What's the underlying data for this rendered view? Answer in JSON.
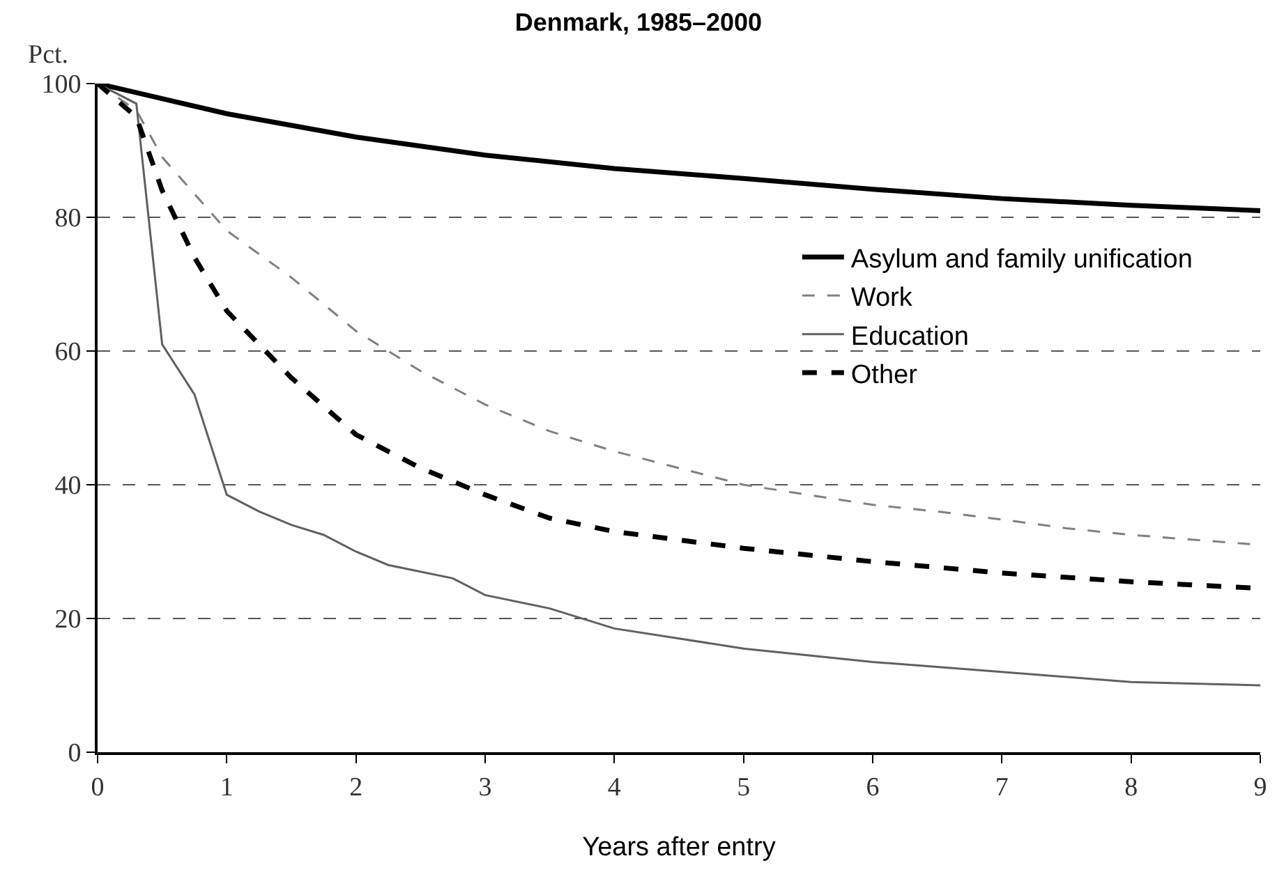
{
  "chart_data": {
    "type": "line",
    "title": "Denmark, 1985–2000",
    "xlabel": "Years after entry",
    "ylabel": "Pct.",
    "xlim": [
      0,
      9
    ],
    "xticks": [
      0,
      1,
      2,
      3,
      4,
      5,
      6,
      7,
      8,
      9
    ],
    "ylim": [
      0,
      100
    ],
    "yticks": [
      0,
      20,
      40,
      60,
      80,
      100
    ],
    "grid": "y",
    "legend": "right",
    "marker": "none",
    "series": [
      {
        "name": "Asylum and family unification",
        "color": "#000000",
        "line_style": "solid",
        "x": [
          0,
          1,
          2,
          3,
          4,
          5,
          6,
          7,
          8,
          9
        ],
        "values": [
          100,
          95.5,
          92,
          89.3,
          87.3,
          85.8,
          84.2,
          82.8,
          81.8,
          81
        ]
      },
      {
        "name": "Work",
        "color": "#808080",
        "line_style": "dashed",
        "x": [
          0,
          0.3,
          0.5,
          1,
          1.5,
          2,
          2.5,
          3,
          3.5,
          4,
          4.5,
          5,
          5.5,
          6,
          6.5,
          7,
          7.5,
          8,
          9
        ],
        "values": [
          100,
          96,
          89,
          78,
          71,
          63,
          57,
          52,
          48,
          45,
          42.5,
          40,
          38.5,
          37,
          36,
          34.8,
          33.5,
          32.5,
          31
        ]
      },
      {
        "name": "Education",
        "color": "#606060",
        "line_style": "solid",
        "x": [
          0,
          0.3,
          0.5,
          0.75,
          1,
          1.25,
          1.5,
          1.75,
          2,
          2.25,
          2.75,
          3,
          3.5,
          4,
          4.5,
          5,
          6,
          7,
          8,
          9
        ],
        "values": [
          100,
          97,
          61,
          53.5,
          38.5,
          36,
          34,
          32.5,
          30,
          28,
          26,
          23.5,
          21.5,
          18.5,
          17,
          15.5,
          13.5,
          12,
          10.5,
          10
        ]
      },
      {
        "name": "Other",
        "color": "#000000",
        "line_style": "dashed",
        "x": [
          0,
          0.3,
          0.5,
          0.75,
          1,
          1.5,
          2,
          2.5,
          3,
          3.5,
          4,
          5,
          6,
          7,
          8,
          9
        ],
        "values": [
          100,
          95,
          84,
          74,
          66,
          56,
          47.5,
          42.5,
          38.5,
          35,
          33,
          30.5,
          28.5,
          26.8,
          25.5,
          24.5
        ]
      }
    ]
  }
}
